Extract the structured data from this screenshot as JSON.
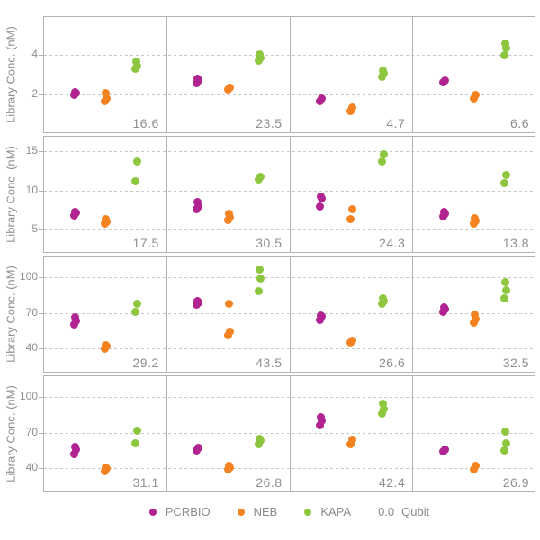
{
  "legend": {
    "items": [
      {
        "label": "PCRBIO",
        "color": "#b02390"
      },
      {
        "label": "NEB",
        "color": "#f58220"
      },
      {
        "label": "KAPA",
        "color": "#8dc63f"
      }
    ],
    "qubit": {
      "value": "0.0",
      "label": "Qubit"
    }
  },
  "chart_data": {
    "type": "scatter",
    "facet_grid": {
      "rows": 4,
      "cols": 4
    },
    "ylabel": "Library Conc. (nM)",
    "series": [
      "PCRBIO",
      "NEB",
      "KAPA"
    ],
    "series_colors": {
      "PCRBIO": "#b02390",
      "NEB": "#f58220",
      "KAPA": "#8dc63f"
    },
    "gridlines": "horizontal-dashed",
    "legend_position": "bottom",
    "panel_annotation": "Qubit value, bottom-right of each panel",
    "rows": [
      {
        "ylim": [
          0,
          6
        ],
        "yticks": [
          2,
          4
        ],
        "panels": [
          {
            "qubit": "16.6",
            "PCRBIO": [
              1.95,
              2.05,
              2.1
            ],
            "NEB": [
              1.65,
              1.8,
              2.05
            ],
            "KAPA": [
              3.3,
              3.45,
              3.65
            ]
          },
          {
            "qubit": "23.5",
            "PCRBIO": [
              2.55,
              2.7,
              2.8
            ],
            "NEB": [
              2.25,
              2.35
            ],
            "KAPA": [
              3.7,
              3.85,
              4.05
            ]
          },
          {
            "qubit": "4.7",
            "PCRBIO": [
              1.65,
              1.8
            ],
            "NEB": [
              1.15,
              1.3
            ],
            "KAPA": [
              2.9,
              3.05,
              3.2
            ]
          },
          {
            "qubit": "6.6",
            "PCRBIO": [
              2.6,
              2.7
            ],
            "NEB": [
              1.8,
              1.95
            ],
            "KAPA": [
              4.0,
              4.35,
              4.6
            ]
          }
        ]
      },
      {
        "ylim": [
          2,
          17
        ],
        "yticks": [
          5,
          10,
          15
        ],
        "panels": [
          {
            "qubit": "17.5",
            "PCRBIO": [
              6.8,
              7.1,
              7.3
            ],
            "NEB": [
              5.7,
              6.0,
              6.3
            ],
            "KAPA": [
              11.2,
              13.7
            ]
          },
          {
            "qubit": "30.5",
            "PCRBIO": [
              7.6,
              8.0,
              8.5
            ],
            "NEB": [
              6.2,
              6.6,
              7.0
            ],
            "KAPA": [
              11.4,
              11.7
            ]
          },
          {
            "qubit": "24.3",
            "PCRBIO": [
              8.0,
              9.0,
              9.2
            ],
            "NEB": [
              6.3,
              7.6
            ],
            "KAPA": [
              13.7,
              14.6
            ]
          },
          {
            "qubit": "13.8",
            "PCRBIO": [
              6.7,
              7.0,
              7.2
            ],
            "NEB": [
              5.7,
              6.1,
              6.4
            ],
            "KAPA": [
              10.9,
              12.0
            ]
          }
        ]
      },
      {
        "ylim": [
          20,
          118
        ],
        "yticks": [
          40,
          70,
          100
        ],
        "panels": [
          {
            "qubit": "29.2",
            "PCRBIO": [
              60,
              63,
              66
            ],
            "NEB": [
              40,
              42,
              43
            ],
            "KAPA": [
              71,
              78
            ]
          },
          {
            "qubit": "43.5",
            "PCRBIO": [
              77,
              78.5,
              80
            ],
            "NEB": [
              51,
              54,
              78
            ],
            "KAPA": [
              88,
              99,
              106
            ]
          },
          {
            "qubit": "26.6",
            "PCRBIO": [
              64,
              67,
              68
            ],
            "NEB": [
              45,
              47
            ],
            "KAPA": [
              78,
              80,
              82
            ]
          },
          {
            "qubit": "32.5",
            "PCRBIO": [
              71,
              73,
              75
            ],
            "NEB": [
              62,
              65,
              69
            ],
            "KAPA": [
              82,
              89,
              96
            ]
          }
        ]
      },
      {
        "ylim": [
          20,
          118
        ],
        "yticks": [
          40,
          70,
          100
        ],
        "panels": [
          {
            "qubit": "31.1",
            "PCRBIO": [
              52,
              56,
              58
            ],
            "NEB": [
              38,
              40,
              41
            ],
            "KAPA": [
              61,
              72
            ]
          },
          {
            "qubit": "26.8",
            "PCRBIO": [
              55,
              57
            ],
            "NEB": [
              39,
              41,
              42
            ],
            "KAPA": [
              60,
              63,
              65
            ]
          },
          {
            "qubit": "42.4",
            "PCRBIO": [
              76,
              80,
              83
            ],
            "NEB": [
              60,
              64
            ],
            "KAPA": [
              86,
              90,
              94
            ]
          },
          {
            "qubit": "26.9",
            "PCRBIO": [
              54,
              56
            ],
            "NEB": [
              39,
              42
            ],
            "KAPA": [
              55,
              61,
              71
            ]
          }
        ]
      }
    ]
  }
}
